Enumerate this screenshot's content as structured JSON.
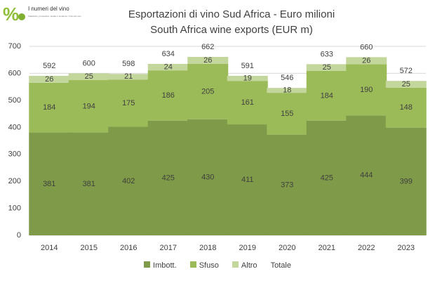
{
  "logo": {
    "name": "I numeri del vino",
    "tagline": "Statistiche, prospettive, analisi e tendenze: il sito del vino"
  },
  "colors": {
    "imbott": "#7f9a48",
    "sfuso": "#9bbb59",
    "altro": "#c3d69b",
    "axis_text": "#404040",
    "inner_label": "#404040",
    "grid": "#d9d9d9"
  },
  "chart_data": {
    "type": "bar",
    "stacked": true,
    "title": "Esportazioni di vino Sud Africa - Euro milioni",
    "subtitle": "South Africa wine exports (EUR m)",
    "xlabel": "",
    "ylabel": "",
    "ylim": [
      0,
      700
    ],
    "yticks": [
      0,
      100,
      200,
      300,
      400,
      500,
      600,
      700
    ],
    "grid": true,
    "legend_position": "bottom",
    "categories": [
      "2014",
      "2015",
      "2016",
      "2017",
      "2018",
      "2019",
      "2020",
      "2021",
      "2022",
      "2023"
    ],
    "series": [
      {
        "name": "Imbott.",
        "color": "#7f9a48",
        "values": [
          381,
          381,
          402,
          425,
          430,
          411,
          373,
          425,
          444,
          399
        ]
      },
      {
        "name": "Sfuso",
        "color": "#9bbb59",
        "values": [
          184,
          194,
          175,
          186,
          205,
          161,
          155,
          184,
          190,
          148
        ]
      },
      {
        "name": "Altro",
        "color": "#c3d69b",
        "values": [
          26,
          25,
          21,
          24,
          26,
          19,
          18,
          25,
          26,
          25
        ]
      }
    ],
    "totals_series": {
      "name": "Totale",
      "values": [
        592,
        600,
        598,
        634,
        662,
        591,
        546,
        633,
        660,
        572
      ]
    }
  }
}
